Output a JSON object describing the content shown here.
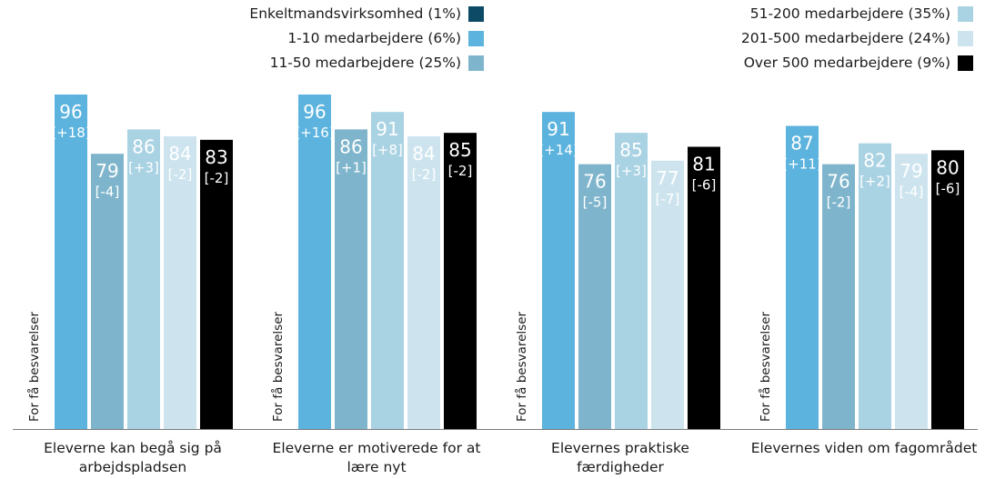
{
  "chart_data": {
    "type": "bar",
    "ylim": [
      0,
      100
    ],
    "categories": [
      [
        "Eleverne kan begå sig på",
        "arbejdspladsen"
      ],
      [
        "Eleverne er motiverede for at",
        "lære nyt"
      ],
      [
        "Elevernes praktiske",
        "færdigheder"
      ],
      [
        "Elevernes viden om fagområdet"
      ]
    ],
    "missing_label": "For få besvarelser",
    "series": [
      {
        "name": "Enkeltmandsvirksomhed (1%)",
        "color": "#0c4a66",
        "label_color": "#ffffff",
        "values": [
          null,
          null,
          null,
          null
        ],
        "diffs": [
          null,
          null,
          null,
          null
        ]
      },
      {
        "name": "1-10 medarbejdere (6%)",
        "color": "#5bb3de",
        "label_color": "#ffffff",
        "values": [
          96,
          96,
          91,
          87
        ],
        "diffs": [
          "[+18]",
          "[+16]",
          "[+14]",
          "[+11]"
        ]
      },
      {
        "name": "11-50 medarbejdere (25%)",
        "color": "#7fb5cc",
        "label_color": "#ffffff",
        "values": [
          79,
          86,
          76,
          76
        ],
        "diffs": [
          "[-4]",
          "[+1]",
          "[-5]",
          "[-2]"
        ]
      },
      {
        "name": "51-200 medarbejdere (35%)",
        "color": "#a9d2e3",
        "label_color": "#ffffff",
        "values": [
          86,
          91,
          85,
          82
        ],
        "diffs": [
          "[+3]",
          "[+8]",
          "[+3]",
          "[+2]"
        ]
      },
      {
        "name": "201-500 medarbejdere (24%)",
        "color": "#cde4ee",
        "label_color": "#ffffff",
        "values": [
          84,
          84,
          77,
          79
        ],
        "diffs": [
          "[-2]",
          "[-2]",
          "[-7]",
          "[-4]"
        ]
      },
      {
        "name": "Over 500 medarbejdere (9%)",
        "color": "#000000",
        "label_color": "#ffffff",
        "values": [
          83,
          85,
          81,
          80
        ],
        "diffs": [
          "[-2]",
          "[-2]",
          "[-6]",
          "[-6]"
        ]
      }
    ]
  }
}
